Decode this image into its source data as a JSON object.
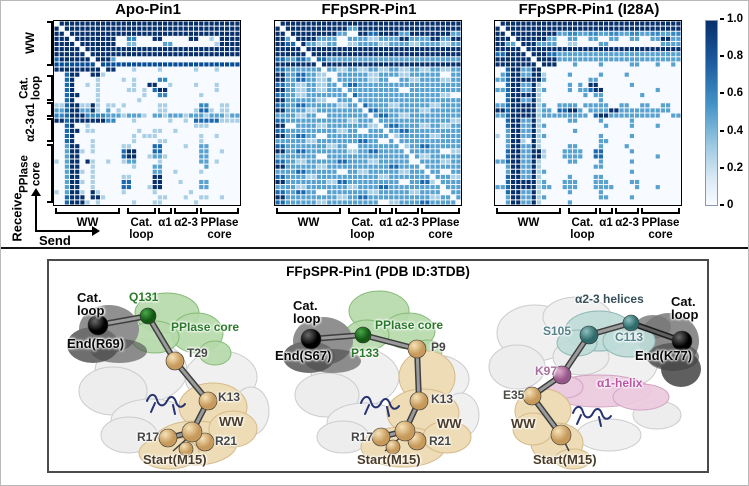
{
  "heatmap_section": {
    "receive_label": "Receive",
    "send_label": "Send",
    "x_regions": [
      {
        "lines": [
          "WW"
        ],
        "from": 0.005,
        "to": 0.355
      },
      {
        "lines": [
          "Cat.",
          "loop"
        ],
        "from": 0.39,
        "to": 0.55
      },
      {
        "lines": [
          "α1"
        ],
        "from": 0.557,
        "to": 0.637
      },
      {
        "lines": [
          "α2-3"
        ],
        "from": 0.645,
        "to": 0.775
      },
      {
        "lines": [
          "PPIase",
          "core"
        ],
        "from": 0.785,
        "to": 0.995
      }
    ],
    "y_regions": [
      {
        "lines": [
          "WW"
        ],
        "from": 0.005,
        "to": 0.25
      },
      {
        "lines": [
          "Cat.",
          "loop"
        ],
        "from": 0.3,
        "to": 0.44
      },
      {
        "lines": [
          "α1"
        ],
        "from": 0.447,
        "to": 0.527
      },
      {
        "lines": [
          "α2-3"
        ],
        "from": 0.533,
        "to": 0.665
      },
      {
        "lines": [
          "PPIase",
          "core"
        ],
        "from": 0.675,
        "to": 0.995
      }
    ],
    "colorbar": {
      "ticks": [
        "1.0",
        "0.8",
        "0.6",
        "0.4",
        "0.2",
        "0"
      ],
      "max_color": "#08306b",
      "min_color": "#f7fbff"
    }
  },
  "chart_data": [
    {
      "type": "heatmap",
      "title": "Apo-Pin1",
      "value_encoding": "each char is a cell; '.'=0, digit d = d/9 coupling strength; diagonal rendered white; spaces are chunk separators",
      "axis_order": [
        "WW",
        "Cat. loop",
        "α1",
        "α2-3",
        "PPIase core"
      ],
      "rows": [
        "999999 999999 999999 999999 999999 999999",
        "999999 999999 999999 999999 999999 999999",
        "999999 999999 999999 999999 999999 999999",
        "999999 999999 ..66.. .99... ..99.. 3.9999",
        "999999 999999 ..44.. ...55. ...... .39999",
        "999999 999999 999999 999999 999999 999999",
        "999999 999999 999999 999999 999999 999999",
        "799999 999995 ...... ...... ...... ......",
        "888888 888888 888888 888888 888888 888888",
        "999999 999999 ...3.. ..3... ...3.. .3....",
        "..799. .993.. ...... ...... ...... ......",
        "..79.. ..3... .3.3.. ..66.. ...... ......",
        "..79.. 3.3... ...3.. 99..3. ...3.. .3....",
        "..79.. ..3... ..33.3 .799.. ...... .3....",
        "..799. ..3... ..3..3 ..66.. ....3. ......",
        "..79.. ..3... ....3. ...... ...... ......",
        "337993 393.33 .3.... ..33.. ....66 ..33..",
        "557995 593.5. 3....3 ..33.. ...377 3.33..",
        "667999 666655 535553 555355 535553 555355",
        "997999 999966 ...3.. .3..3. .3.777 773333",
        "..79.. 3..... ...... ..3... ...333 ......",
        "..799. 33.... ....3. .33..3 ...... ......",
        "..79.. ...... ...3.3 33.... ....3. .3....",
        "..79.. .3.... ...3.. ..33.. ....3. ......",
        "..599. .3.... .33... .77... .3..55 ......",
        "..5993 .3.... .799.. .77... ....55 ..3...",
        "..599. ...... .799.. 3553.. ..3.55 ......",
        "3.599. 93..3. .355.. ..3... ....55 .3....",
        "..599. .3.... ...3.. .55... ....55 ......",
        "..5993 .3.... ...... .55..3 ....3. ......",
        "..599. .3.... .33... .99... ...... ......",
        "..5993 .3.... .77... .99... 3...55 ......",
        "..599. .3.... .77... 399... ....55 ......",
        "3.5993 .93... .3.... .3.... ..3... ......",
        "..7999 .993.. ...... ..33.. .3..33 ..3...",
        "..7999 3.3... ...3.. .33... ...3.. ......"
      ]
    },
    {
      "type": "heatmap",
      "title": "FFpSPR-Pin1",
      "value_encoding": "each char is a cell; '.'=0, digit d = d/9 coupling strength; diagonal rendered white; spaces are chunk separators",
      "axis_order": [
        "WW",
        "Cat. loop",
        "α1",
        "α2-3",
        "PPIase core"
      ],
      "rows": [
        "999999 999999 999999 999999 999999 999999",
        "999999 999999 995599 999999 999999 999999",
        "999999 999999 55..99 779999 559999 999955",
        "995599 995555 ..5555 335555 995555 995599",
        "997799 553355 ..3355 553355 553355 553355",
        "999999 999999 999999 999999 999999 999999",
        "999999 999999 999999 999999 999999 999999",
        "775577 557755 555555 555555 555555 555555",
        "999999 999999 999999 999999 999999 999999",
        "775555 555555 335533 553355 335533 553355",
        "995577 5533.. 555555 335555 335555 55..55",
        "995577 553355 555555 3355.. 553355 553355",
        "775533 553355 557755 555555 555555 555555",
        "995533 553355 555555 555555 ..5555 555555",
        "775533 555555 557755 555555 555555 5533..",
        "995555 5533.. 555555 555555 555555 555555",
        "775577 555555 335577 555533 555555 335555",
        "995555 335555 555555 775555 555533 555555",
        "555533 55..55 555555 557755 335555 555555",
        "775555 555555 553355 555555 555555 555533",
        "99..55 553355 555555 335577 555533 553355",
        "775555 555555 3355.. 555555 775555 555555",
        "995577 55..55 555555 555533 555555 335555",
        "555555 335555 555577 55..55 555555 555555",
        "775555 555533 55..55 555555 335577 555555",
        "995577 555555 553355 775555 555555 55..33",
        "555555 55..55 555555 555555 555533 555555",
        "775533 555555 775555 335555 55..55 553355",
        "995555 553355 555555 555577 555555 555555",
        "555577 555555 ..5533 555555 335555 55..55",
        "775555 335555 555555 553355 555555 555533",
        "995555 555533 775555 555555 ..5577 335555",
        "555533 555555 553355 557755 555555 555555",
        "775577 55..55 555555 335555 553355 55..55",
        "995555 555555 335577 555555 555555 335555",
        "775555 553355 555555 55..33 555577 555555"
      ]
    },
    {
      "type": "heatmap",
      "title": "FFpSPR-Pin1 (I28A)",
      "value_encoding": "each char is a cell; '.'=0, digit d = d/9 coupling strength; diagonal rendered white; spaces are chunk separators",
      "axis_order": [
        "WW",
        "Cat. loop",
        "α1",
        "α2-3",
        "PPIase core"
      ],
      "rows": [
        "999999 999999 999999 999999 999999 999999",
        "999999 999999 999999 999999 999999 999999",
        "999999 999999 556655 665566 556655 665566",
        "999999 999955 ..55.. 55..55 ..55.. 559955",
        "995599 995555 ..33.. ..55.. ...... ..5555",
        "999999 999999 999999 999999 999999 999999",
        "779999 999977 555555 555555 555555 555555",
        "999999 999999 555555 555555 555555 555555",
        "999999 999999 ...5.. ..5... ..55.. .5..5.",
        "..7995 5993.. ...... ...... ...... ......",
        ".57995 5993.. ..5... ..5... .5.... ......",
        "557999 9995.. ...... 55.... ...... ......",
        "..7995 593... ..5.5. 99.... ..5... ......",
        "557995 5935.. .55.55 799... ...... .5....",
        "..7999 993... ..5..5 .55... ....5. ......",
        "..7995 593... ...... ..5... ...... ......",
        "557999 9935.. 555555 5555.. 55..55 ..55..",
        "997999 99355. 779955 555599 555555 5555..",
        "557999 993555 555555 779955 555555 55..55",
        "..7995 593... ..55.. .55... ..5... ......",
        "..7995 5935.. ...... ..55.. ..5... .5....",
        "..5995 593... ...5.. ...... ...... ......",
        "3.5995 5935.. ...... ..5... ..5... ......",
        "..5993 .93... ...... ..55.. ...... ......",
        "..5995 593... ..55.. ..5... .5.... ......",
        "..7995 5993.. .5555. .77... ..5... ......",
        "..7995 5993.. .5555. .77... ...... .5....",
        "557995 593... ..55.. ..5... ..5... ......",
        "..5995 593... ...... .55... ...... ......",
        "..5995 5935.. ...... ...... ..5... ......",
        "..7995 593... ..5... .55... ...... ......",
        "..7999 9935.. .555.. .555.. ..55.. ......",
        "557999 99355. .555.. .5555. ...5.. .55...",
        "..7995 593... ..5... ..5... ...... ......",
        "..5995 5935.. ...... ..55.. ..5... ......",
        "..5995 593... ..5... ...... ...... ......"
      ]
    }
  ],
  "structure_panel": {
    "title": "FFpSPR-Pin1 (PDB ID:3TDB)",
    "structures": [
      {
        "labels": {
          "cat_loop": "Cat.\nloop",
          "end": "End(R69)",
          "q131": "Q131",
          "ppiase_core": "PPIase core",
          "t29": "T29",
          "k13": "K13",
          "ww": "WW",
          "r17": "R17",
          "r21": "R21",
          "start": "Start(M15)"
        }
      },
      {
        "labels": {
          "cat_loop": "Cat.\nloop",
          "end": "End(S67)",
          "p133": "P133",
          "ppiase_core": "PPIase core",
          "p9": "P9",
          "k13": "K13",
          "ww": "WW",
          "r17": "R17",
          "r21": "R21",
          "start": "Start(M15)"
        }
      },
      {
        "labels": {
          "helices": "α2-3 helices",
          "cat_loop": "Cat.\nloop",
          "s105": "S105",
          "c113": "C113",
          "end": "End(K77)",
          "k97": "K97",
          "a1_helix": "α1-helix",
          "e35": "E35",
          "ww": "WW",
          "start": "Start(M15)"
        }
      }
    ]
  }
}
